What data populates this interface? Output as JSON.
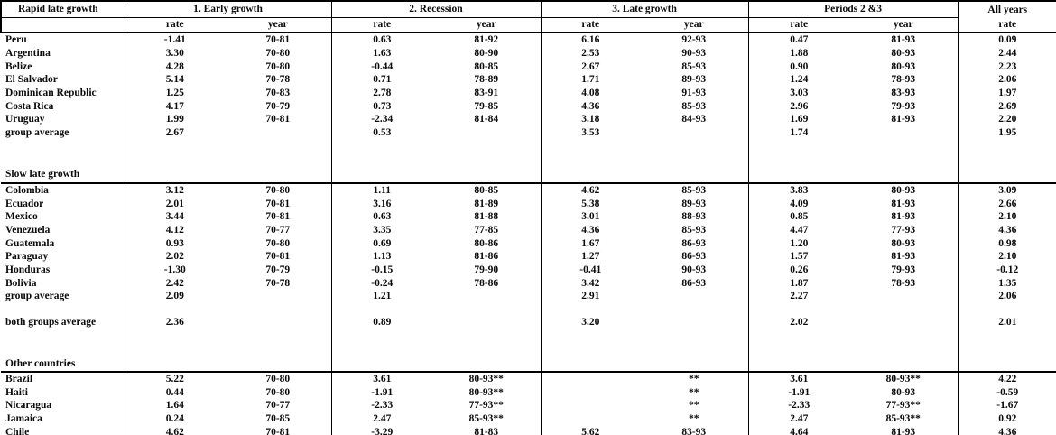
{
  "table": {
    "corner_label": "Rapid late growth",
    "groups": [
      {
        "label": "1. Early growth",
        "cols": [
          "rate",
          "year"
        ],
        "underline": true
      },
      {
        "label": "2. Recession",
        "cols": [
          "rate",
          "year"
        ],
        "underline": true
      },
      {
        "label": "3. Late growth",
        "cols": [
          "rate",
          "year"
        ],
        "underline": true
      },
      {
        "label": "Periods 2 &3",
        "cols": [
          "rate",
          "year"
        ],
        "underline": true
      },
      {
        "label": "All years",
        "cols": [
          "rate"
        ],
        "underline": false
      }
    ],
    "sections": [
      {
        "label": null,
        "rows": [
          {
            "country": "Peru",
            "values": [
              "-1.41",
              "70-81",
              "0.63",
              "81-92",
              "6.16",
              "92-93",
              "0.47",
              "81-93",
              "0.09"
            ]
          },
          {
            "country": "Argentina",
            "values": [
              "3.30",
              "70-80",
              "1.63",
              "80-90",
              "2.53",
              "90-93",
              "1.88",
              "80-93",
              "2.44"
            ]
          },
          {
            "country": "Belize",
            "values": [
              "4.28",
              "70-80",
              "-0.44",
              "80-85",
              "2.67",
              "85-93",
              "0.90",
              "80-93",
              "2.23"
            ]
          },
          {
            "country": "El Salvador",
            "values": [
              "5.14",
              "70-78",
              "0.71",
              "78-89",
              "1.71",
              "89-93",
              "1.24",
              "78-93",
              "2.06"
            ]
          },
          {
            "country": "Dominican Republic",
            "values": [
              "1.25",
              "70-83",
              "2.78",
              "83-91",
              "4.08",
              "91-93",
              "3.03",
              "83-93",
              "1.97"
            ]
          },
          {
            "country": "Costa Rica",
            "values": [
              "4.17",
              "70-79",
              "0.73",
              "79-85",
              "4.36",
              "85-93",
              "2.96",
              "79-93",
              "2.69"
            ]
          },
          {
            "country": "Uruguay",
            "values": [
              "1.99",
              "70-81",
              "-2.34",
              "81-84",
              "3.18",
              "84-93",
              "1.69",
              "81-93",
              "2.20"
            ]
          },
          {
            "country": "group average",
            "values": [
              "2.67",
              "",
              "0.53",
              "",
              "3.53",
              "",
              "1.74",
              "",
              "1.95"
            ]
          }
        ]
      },
      {
        "label": "Slow late growth",
        "rows": [
          {
            "country": "Colombia",
            "values": [
              "3.12",
              "70-80",
              "1.11",
              "80-85",
              "4.62",
              "85-93",
              "3.83",
              "80-93",
              "3.09"
            ]
          },
          {
            "country": "Ecuador",
            "values": [
              "2.01",
              "70-81",
              "3.16",
              "81-89",
              "5.38",
              "89-93",
              "4.09",
              "81-93",
              "2.66"
            ]
          },
          {
            "country": "Mexico",
            "values": [
              "3.44",
              "70-81",
              "0.63",
              "81-88",
              "3.01",
              "88-93",
              "0.85",
              "81-93",
              "2.10"
            ]
          },
          {
            "country": "Venezuela",
            "values": [
              "4.12",
              "70-77",
              "3.35",
              "77-85",
              "4.36",
              "85-93",
              "4.47",
              "77-93",
              "4.36"
            ]
          },
          {
            "country": "Guatemala",
            "values": [
              "0.93",
              "70-80",
              "0.69",
              "80-86",
              "1.67",
              "86-93",
              "1.20",
              "80-93",
              "0.98"
            ]
          },
          {
            "country": "Paraguay",
            "values": [
              "2.02",
              "70-81",
              "1.13",
              "81-86",
              "1.27",
              "86-93",
              "1.57",
              "81-93",
              "2.10"
            ]
          },
          {
            "country": "Honduras",
            "values": [
              "-1.30",
              "70-79",
              "-0.15",
              "79-90",
              "-0.41",
              "90-93",
              "0.26",
              "79-93",
              "-0.12"
            ]
          },
          {
            "country": "Bolivia",
            "values": [
              "2.42",
              "70-78",
              "-0.24",
              "78-86",
              "3.42",
              "86-93",
              "1.87",
              "78-93",
              "1.35"
            ]
          },
          {
            "country": "group average",
            "values": [
              "2.09",
              "",
              "1.21",
              "",
              "2.91",
              "",
              "2.27",
              "",
              "2.06"
            ]
          },
          {
            "country": "both groups average",
            "tall": true,
            "values": [
              "2.36",
              "",
              "0.89",
              "",
              "3.20",
              "",
              "2.02",
              "",
              "2.01"
            ]
          }
        ]
      },
      {
        "label": "Other countries",
        "rows": [
          {
            "country": "Brazil",
            "values": [
              "5.22",
              "70-80",
              "3.61",
              "80-93**",
              "",
              "**",
              "3.61",
              "80-93**",
              "4.22"
            ]
          },
          {
            "country": "Haiti",
            "values": [
              "0.44",
              "70-80",
              "-1.91",
              "80-93**",
              "",
              "**",
              "-1.91",
              "80-93",
              "-0.59"
            ]
          },
          {
            "country": "Nicaragua",
            "values": [
              "1.64",
              "70-77",
              "-2.33",
              "77-93**",
              "",
              "**",
              "-2.33",
              "77-93**",
              "-1.67"
            ]
          },
          {
            "country": "Jamaica",
            "values": [
              "0.24",
              "70-85",
              "2.47",
              "85-93**",
              "",
              "**",
              "2.47",
              "85-93**",
              "0.92"
            ]
          },
          {
            "country": "Chile",
            "values": [
              "4.62",
              "70-81",
              "-3.29",
              "81-83",
              "5.62",
              "83-93",
              "4.64",
              "81-93",
              "4.36"
            ]
          }
        ]
      }
    ]
  }
}
